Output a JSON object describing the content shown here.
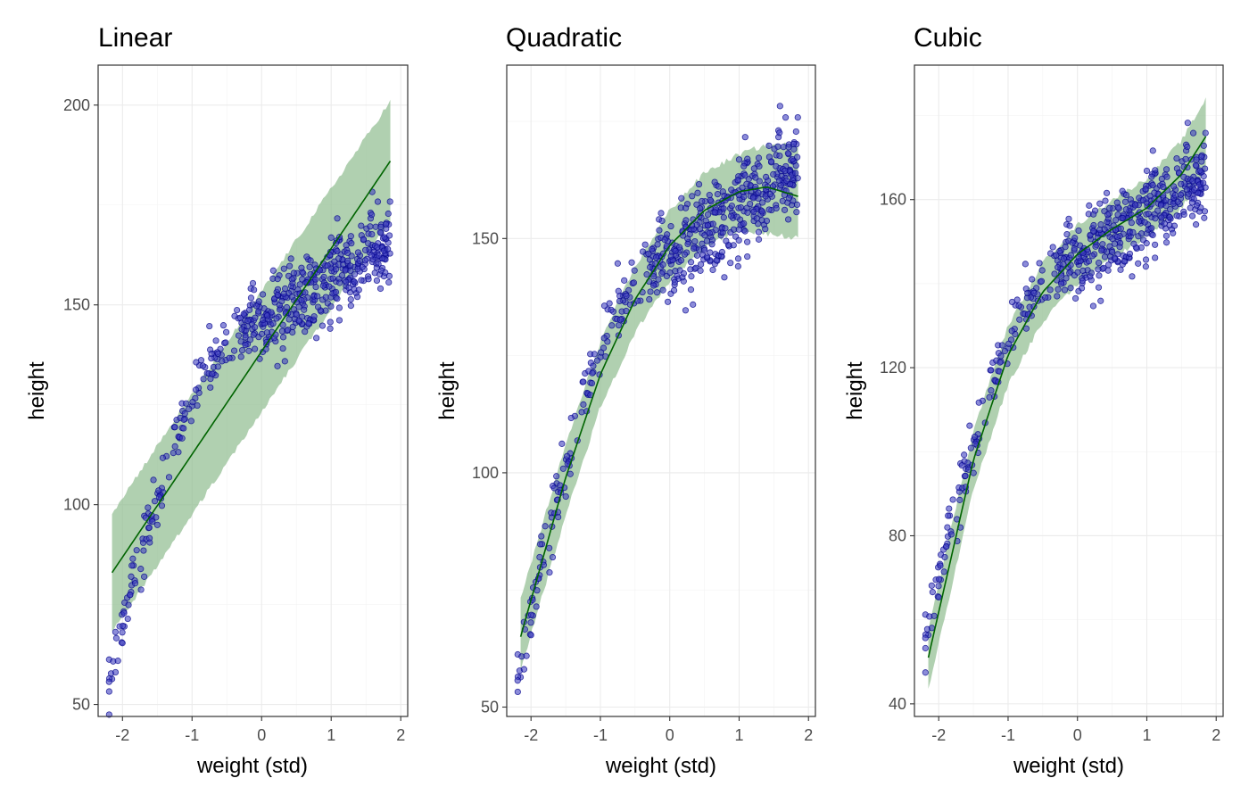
{
  "colors": {
    "point_fill": "#3f3fc0",
    "point_stroke": "#00008b",
    "ribbon": "#8fbc8f",
    "mean_line": "#006400"
  },
  "chart_data": [
    {
      "type": "scatter",
      "title": "Linear",
      "xlabel": "weight (std)",
      "ylabel": "height",
      "xlim": [
        -2.35,
        2.1
      ],
      "ylim": [
        47,
        210
      ],
      "xticks": [
        -2,
        -1,
        0,
        1,
        2
      ],
      "yticks": [
        50,
        100,
        150,
        200
      ],
      "grid": true,
      "mean_curve": {
        "x": [
          -2.15,
          1.85
        ],
        "y": [
          83,
          186
        ]
      },
      "ribbon": {
        "x": [
          -2.15,
          1.85
        ],
        "lower": [
          68,
          171
        ],
        "upper": [
          98,
          201
        ]
      },
      "observations": {
        "description": "~540 points from -2.2 to 1.85 std weight",
        "height_range": [
          54,
          180
        ]
      }
    },
    {
      "type": "scatter",
      "title": "Quadratic",
      "xlabel": "weight (std)",
      "ylabel": "height",
      "xlim": [
        -2.35,
        2.1
      ],
      "ylim": [
        48,
        187
      ],
      "xticks": [
        -2,
        -1,
        0,
        1,
        2
      ],
      "yticks": [
        50,
        100,
        150
      ],
      "grid": true,
      "mean_curve": {
        "x": [
          -2.15,
          -1.5,
          -1.0,
          -0.5,
          0.0,
          0.5,
          1.0,
          1.4,
          1.85
        ],
        "y": [
          65,
          99,
          121,
          137,
          148.5,
          156,
          160,
          161,
          159
        ]
      },
      "ribbon": {
        "x": [
          -2.15,
          -1.5,
          -1.0,
          -0.5,
          0.0,
          0.5,
          1.0,
          1.4,
          1.85
        ],
        "lower": [
          58,
          91,
          114,
          130,
          141,
          148,
          152,
          151,
          150
        ],
        "upper": [
          73,
          106,
          128,
          144,
          156,
          164,
          168,
          170,
          170
        ]
      },
      "observations": {
        "description": "~540 points",
        "height_range": [
          54,
          181
        ]
      }
    },
    {
      "type": "scatter",
      "title": "Cubic",
      "xlabel": "weight (std)",
      "ylabel": "height",
      "xlim": [
        -2.35,
        2.1
      ],
      "ylim": [
        37,
        192
      ],
      "xticks": [
        -2,
        -1,
        0,
        1,
        2
      ],
      "yticks": [
        40,
        80,
        120,
        160
      ],
      "grid": true,
      "mean_curve": {
        "x": [
          -2.15,
          -1.5,
          -1.0,
          -0.5,
          0.0,
          0.5,
          1.0,
          1.5,
          1.85
        ],
        "y": [
          51,
          98,
          123,
          138,
          147,
          153,
          158,
          166,
          175
        ]
      },
      "ribbon": {
        "x": [
          -2.15,
          -1.5,
          -1.0,
          -0.5,
          0.0,
          0.5,
          1.0,
          1.5,
          1.85
        ],
        "lower": [
          43,
          91,
          116,
          131,
          140,
          146,
          151,
          158,
          167
        ],
        "upper": [
          58,
          105,
          130,
          145,
          154,
          160,
          165,
          174,
          184
        ]
      },
      "observations": {
        "description": "~540 points",
        "height_range": [
          54,
          180
        ]
      }
    }
  ]
}
